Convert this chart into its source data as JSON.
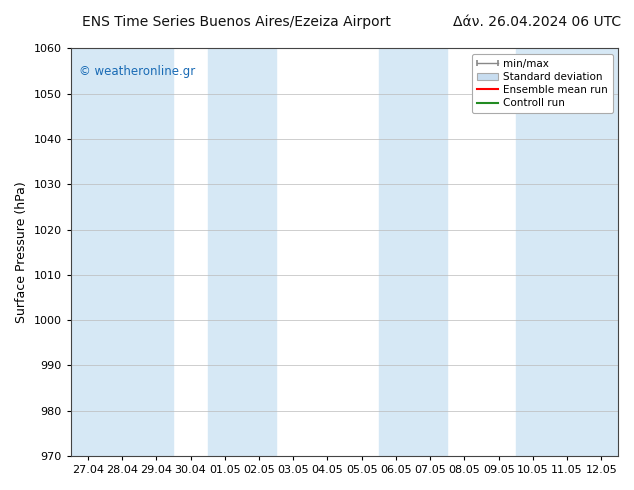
{
  "title_left": "ENS Time Series Buenos Aires/Ezeiza Airport",
  "title_right": "Δάν. 26.04.2024 06 UTC",
  "ylabel": "Surface Pressure (hPa)",
  "ylim": [
    970,
    1060
  ],
  "yticks": [
    970,
    980,
    990,
    1000,
    1010,
    1020,
    1030,
    1040,
    1050,
    1060
  ],
  "x_labels": [
    "27.04",
    "28.04",
    "29.04",
    "30.04",
    "01.05",
    "02.05",
    "03.05",
    "04.05",
    "05.05",
    "06.05",
    "07.05",
    "08.05",
    "09.05",
    "10.05",
    "11.05",
    "12.05"
  ],
  "watermark": "© weatheronline.gr",
  "watermark_color": "#1a6bb5",
  "bg_color": "#ffffff",
  "plot_bg_color": "#ffffff",
  "shaded_color": "#d6e8f5",
  "shaded_ranges": [
    [
      0,
      2
    ],
    [
      4,
      5
    ],
    [
      9,
      10
    ],
    [
      13,
      15
    ]
  ],
  "legend_items": [
    {
      "label": "min/max",
      "color": "#aaaaaa",
      "type": "errorbar"
    },
    {
      "label": "Standard deviation",
      "color": "#c8ddf0",
      "type": "bar"
    },
    {
      "label": "Ensemble mean run",
      "color": "#ff0000",
      "type": "line"
    },
    {
      "label": "Controll run",
      "color": "#008000",
      "type": "line"
    }
  ],
  "title_fontsize": 10,
  "axis_fontsize": 9,
  "tick_fontsize": 8
}
